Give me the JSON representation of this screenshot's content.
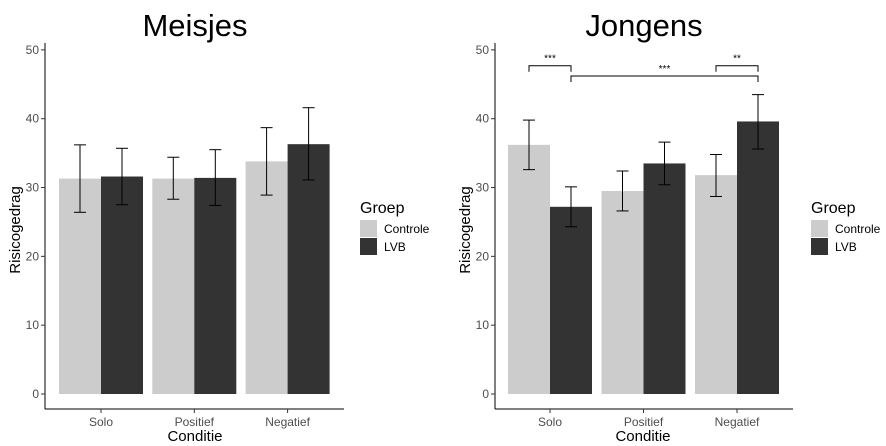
{
  "chart_data": [
    {
      "type": "bar",
      "title": "Meisjes",
      "xlabel": "Conditie",
      "ylabel": "Risicogedrag",
      "categories": [
        "Solo",
        "Positief",
        "Negatief"
      ],
      "ylim": [
        0,
        51
      ],
      "yticks": [
        0,
        10,
        20,
        30,
        40,
        50
      ],
      "grid": false,
      "legend": {
        "title": "Groep",
        "position": "right"
      },
      "series": [
        {
          "name": "Controle",
          "color": "#cccccc",
          "values": [
            31.3,
            31.3,
            33.8
          ],
          "err_low": [
            26.4,
            28.3,
            28.9
          ],
          "err_high": [
            36.2,
            34.4,
            38.7
          ]
        },
        {
          "name": "LVB",
          "color": "#333333",
          "values": [
            31.6,
            31.4,
            36.3
          ],
          "err_low": [
            27.5,
            27.4,
            31.1
          ],
          "err_high": [
            35.7,
            35.5,
            41.6
          ]
        }
      ],
      "annotations": []
    },
    {
      "type": "bar",
      "title": "Jongens",
      "xlabel": "Conditie",
      "ylabel": "Risicogedrag",
      "categories": [
        "Solo",
        "Positief",
        "Negatief"
      ],
      "ylim": [
        0,
        51
      ],
      "yticks": [
        0,
        10,
        20,
        30,
        40,
        50
      ],
      "grid": false,
      "legend": {
        "title": "Groep",
        "position": "right"
      },
      "series": [
        {
          "name": "Controle",
          "color": "#cccccc",
          "values": [
            36.2,
            29.5,
            31.8
          ],
          "err_low": [
            32.6,
            26.6,
            28.7
          ],
          "err_high": [
            39.8,
            32.4,
            34.8
          ]
        },
        {
          "name": "LVB",
          "color": "#333333",
          "values": [
            27.2,
            33.5,
            39.6
          ],
          "err_low": [
            24.3,
            30.4,
            35.6
          ],
          "err_high": [
            30.1,
            36.6,
            43.5
          ]
        }
      ],
      "annotations": [
        {
          "label": "***",
          "from": [
            0,
            0
          ],
          "to": [
            0,
            1
          ],
          "y": 47.7
        },
        {
          "label": "***",
          "from": [
            0,
            1
          ],
          "to": [
            2,
            1
          ],
          "y": 46.2
        },
        {
          "label": "**",
          "from": [
            2,
            0
          ],
          "to": [
            2,
            1
          ],
          "y": 47.7
        }
      ]
    }
  ]
}
